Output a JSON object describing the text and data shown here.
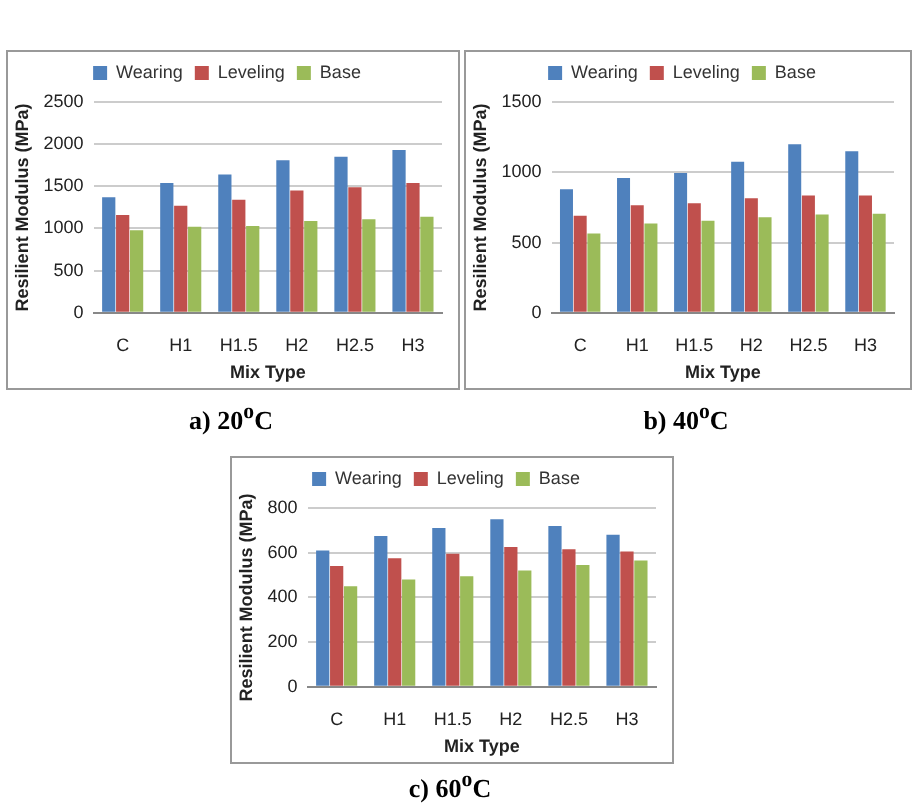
{
  "chart_data": [
    {
      "type": "bar",
      "title": "a)  20$^{o}$C",
      "xlabel": "Mix Type",
      "ylabel": "Resilient Modulus (MPa)",
      "categories": [
        "C",
        "H1",
        "H1.5",
        "H2",
        "H2.5",
        "H3"
      ],
      "series": [
        {
          "name": "Wearing",
          "color": "#4f81bd",
          "values": [
            1370,
            1540,
            1640,
            1810,
            1850,
            1930
          ]
        },
        {
          "name": "Leveling",
          "color": "#c0504d",
          "values": [
            1160,
            1270,
            1340,
            1450,
            1490,
            1540
          ]
        },
        {
          "name": "Base",
          "color": "#9bbb59",
          "values": [
            980,
            1020,
            1030,
            1090,
            1110,
            1140
          ]
        }
      ],
      "ylim": [
        0,
        2500
      ],
      "yticks": [
        0,
        500,
        1000,
        1500,
        2000,
        2500
      ],
      "grid": "y",
      "legend": "top"
    },
    {
      "type": "bar",
      "title": "b)  40$^{o}$C",
      "xlabel": "Mix Type",
      "ylabel": "Resilient Modulus (MPa)",
      "categories": [
        "C",
        "H1",
        "H1.5",
        "H2",
        "H2.5",
        "H3"
      ],
      "series": [
        {
          "name": "Wearing",
          "color": "#4f81bd",
          "values": [
            880,
            960,
            995,
            1075,
            1200,
            1150
          ]
        },
        {
          "name": "Leveling",
          "color": "#c0504d",
          "values": [
            690,
            765,
            780,
            815,
            835,
            835
          ]
        },
        {
          "name": "Base",
          "color": "#9bbb59",
          "values": [
            565,
            635,
            655,
            680,
            700,
            705
          ]
        }
      ],
      "ylim": [
        0,
        1500
      ],
      "yticks": [
        0,
        500,
        1000,
        1500
      ],
      "grid": "y",
      "legend": "top"
    },
    {
      "type": "bar",
      "title": "c)  60$^{o}$C",
      "xlabel": "Mix Type",
      "ylabel": "Resilient Modulus (MPa)",
      "categories": [
        "C",
        "H1",
        "H1.5",
        "H2",
        "H2.5",
        "H3"
      ],
      "series": [
        {
          "name": "Wearing",
          "color": "#4f81bd",
          "values": [
            610,
            675,
            710,
            750,
            720,
            680
          ]
        },
        {
          "name": "Leveling",
          "color": "#c0504d",
          "values": [
            540,
            575,
            595,
            625,
            615,
            605
          ]
        },
        {
          "name": "Base",
          "color": "#9bbb59",
          "values": [
            450,
            480,
            495,
            520,
            545,
            565
          ]
        }
      ],
      "ylim": [
        0,
        800
      ],
      "yticks": [
        0,
        200,
        400,
        600,
        800
      ],
      "grid": "y",
      "legend": "top"
    }
  ]
}
